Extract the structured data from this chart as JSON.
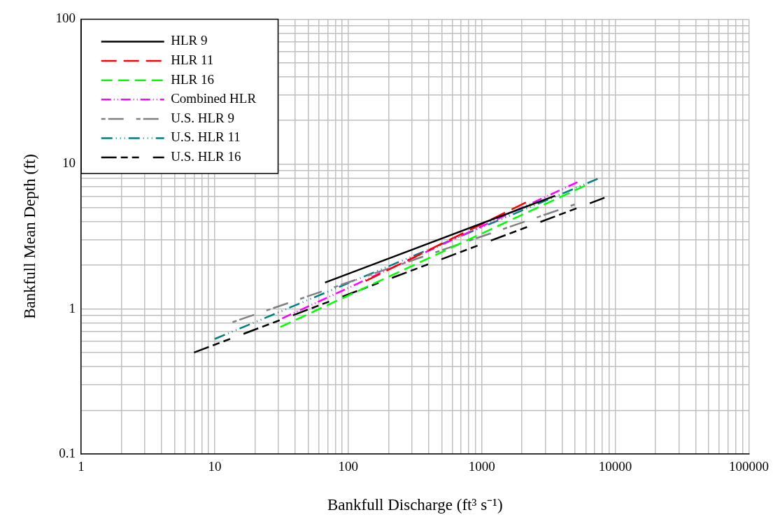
{
  "chart_data": {
    "type": "line",
    "xlabel": "Bankfull Discharge (ft³ s⁻¹)",
    "ylabel": "Bankfull Mean Depth (ft)",
    "log": "xy",
    "grid": true,
    "legend": "top left",
    "marker": "none",
    "xlim": [
      1,
      100000
    ],
    "xticks": [
      1,
      10,
      100,
      1000,
      10000,
      100000
    ],
    "ylim": [
      0.1,
      100
    ],
    "yticks": [
      0.1,
      1,
      10,
      100
    ],
    "series": [
      {
        "name": "HLR 9",
        "color": "#000000",
        "line_style": "solid",
        "x": [
          67,
          3540
        ],
        "values": [
          1.52,
          6.04
        ]
      },
      {
        "name": "HLR 11",
        "color": "#ff0000",
        "line_style": "dashed",
        "x": [
          135,
          2140
        ],
        "values": [
          1.56,
          5.43
        ]
      },
      {
        "name": "HLR 16",
        "color": "#00ff00",
        "line_style": "dashed",
        "x": [
          31,
          5940
        ],
        "values": [
          0.75,
          7.1
        ]
      },
      {
        "name": "Combined HLR",
        "color": "#ff00ff",
        "line_style": "dashed",
        "x": [
          32,
          5200
        ],
        "values": [
          0.86,
          7.5
        ]
      },
      {
        "name": "U.S. HLR 9",
        "color": "#808080",
        "line_style": "dashed",
        "x": [
          13.6,
          4960
        ],
        "values": [
          0.81,
          5.26
        ]
      },
      {
        "name": "U.S. HLR 11",
        "color": "#008080",
        "line_style": "dashed",
        "x": [
          10,
          7370
        ],
        "values": [
          0.62,
          7.9
        ]
      },
      {
        "name": "U.S. HLR 16",
        "color": "#000000",
        "line_style": "dashed",
        "x": [
          7,
          8300
        ],
        "values": [
          0.5,
          5.85
        ]
      }
    ]
  }
}
